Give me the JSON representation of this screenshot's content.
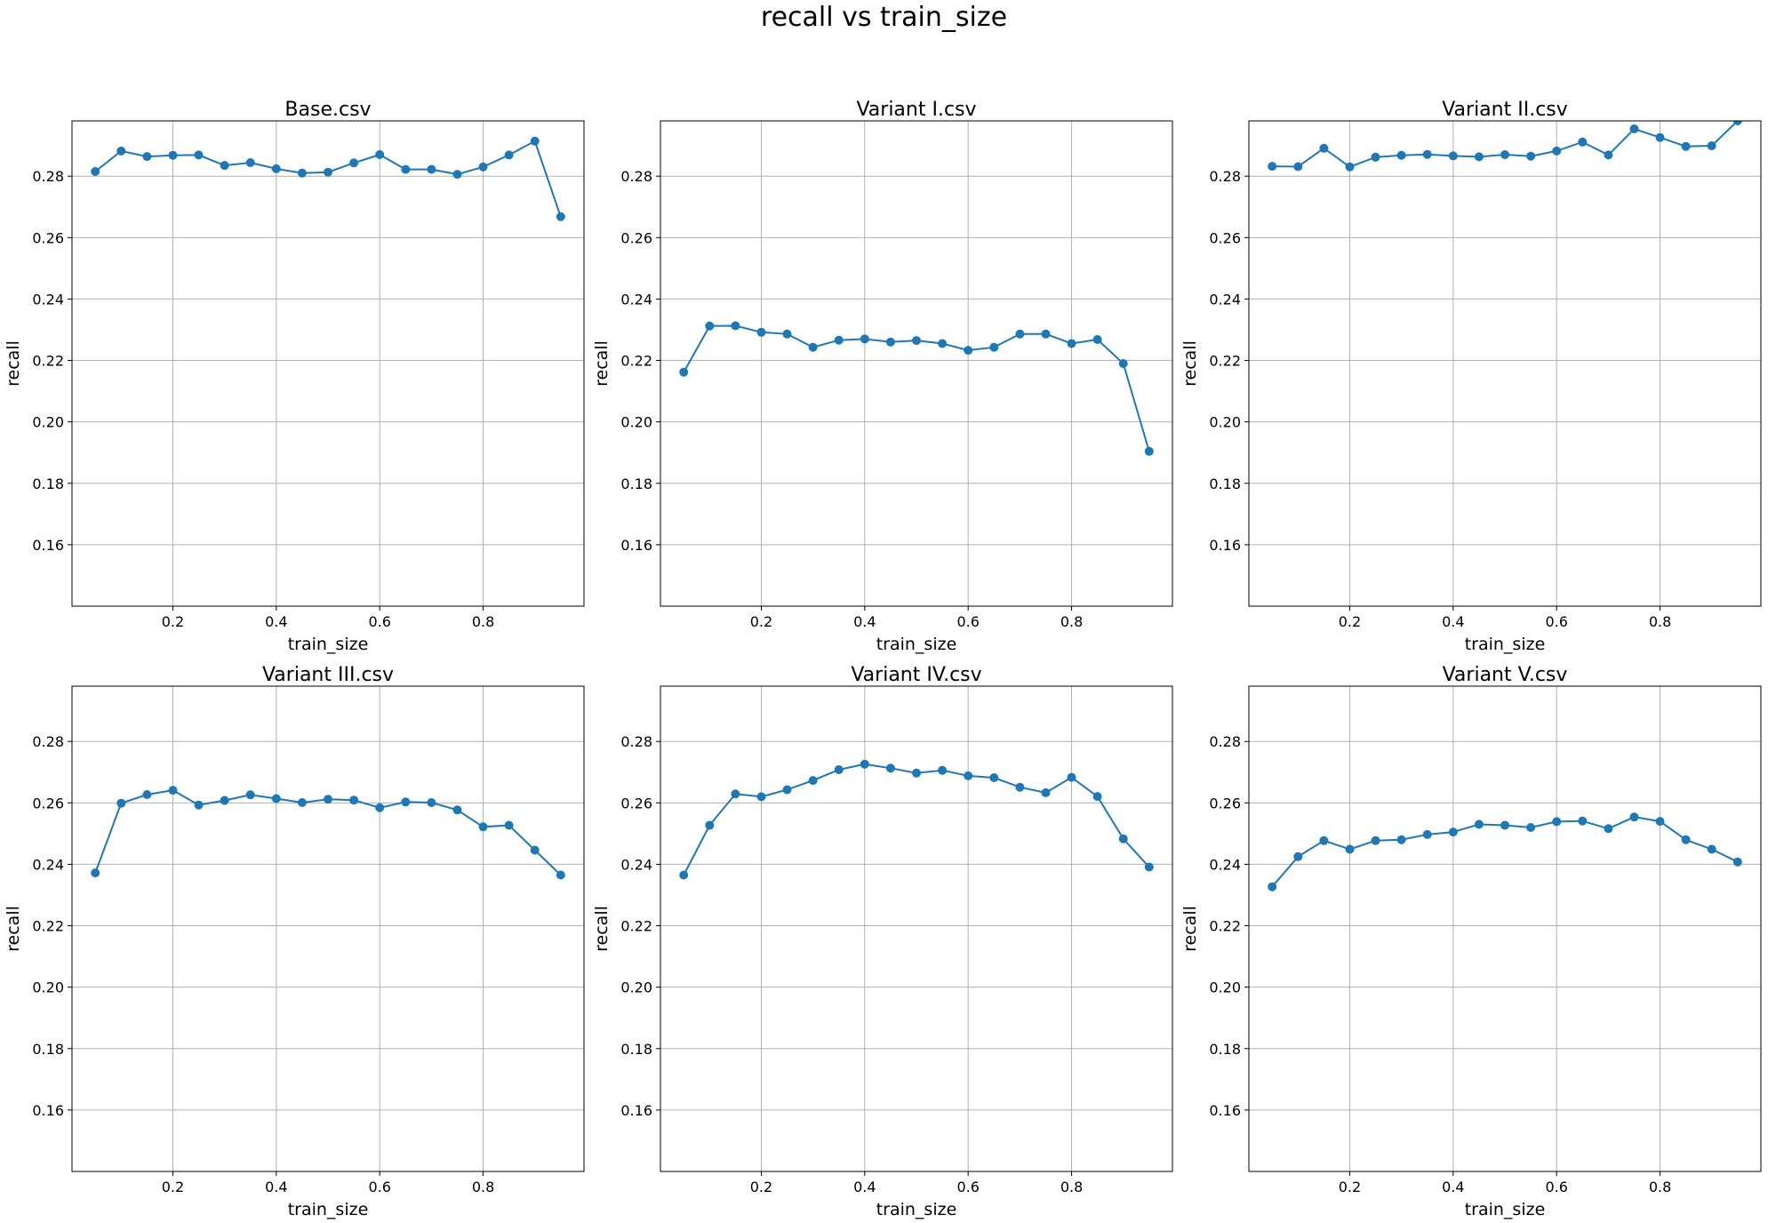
{
  "suptitle": "recall vs train_size",
  "colors": {
    "line": "#1f77b4",
    "grid": "#b0b0b0",
    "axes": "#000000"
  },
  "chart_data": [
    {
      "type": "line",
      "title": "Base.csv",
      "xlabel": "train_size",
      "ylabel": "recall",
      "xlim": [
        0.005,
        0.995
      ],
      "ylim": [
        0.14,
        0.298
      ],
      "xticks": [
        0.2,
        0.4,
        0.6,
        0.8
      ],
      "yticks": [
        0.16,
        0.18,
        0.2,
        0.22,
        0.24,
        0.26,
        0.28
      ],
      "grid": true,
      "x": [
        0.05,
        0.1,
        0.15,
        0.2,
        0.25,
        0.3,
        0.35,
        0.4,
        0.45,
        0.5,
        0.55,
        0.6,
        0.65,
        0.7,
        0.75,
        0.8,
        0.85,
        0.9,
        0.95
      ],
      "y": [
        0.2815,
        0.2882,
        0.2864,
        0.2868,
        0.2869,
        0.2835,
        0.2844,
        0.2824,
        0.281,
        0.2813,
        0.2843,
        0.287,
        0.2822,
        0.2822,
        0.2806,
        0.283,
        0.2869,
        0.2914,
        0.2668
      ]
    },
    {
      "type": "line",
      "title": "Variant I.csv",
      "xlabel": "train_size",
      "ylabel": "recall",
      "xlim": [
        0.005,
        0.995
      ],
      "ylim": [
        0.14,
        0.298
      ],
      "xticks": [
        0.2,
        0.4,
        0.6,
        0.8
      ],
      "yticks": [
        0.16,
        0.18,
        0.2,
        0.22,
        0.24,
        0.26,
        0.28
      ],
      "grid": true,
      "x": [
        0.05,
        0.1,
        0.15,
        0.2,
        0.25,
        0.3,
        0.35,
        0.4,
        0.45,
        0.5,
        0.55,
        0.6,
        0.65,
        0.7,
        0.75,
        0.8,
        0.85,
        0.9,
        0.95
      ],
      "y": [
        0.2162,
        0.2312,
        0.2313,
        0.2292,
        0.2286,
        0.2243,
        0.2266,
        0.227,
        0.226,
        0.2265,
        0.2255,
        0.2233,
        0.2243,
        0.2286,
        0.2286,
        0.2255,
        0.2268,
        0.219,
        0.1904
      ]
    },
    {
      "type": "line",
      "title": "Variant II.csv",
      "xlabel": "train_size",
      "ylabel": "recall",
      "xlim": [
        0.005,
        0.995
      ],
      "ylim": [
        0.14,
        0.298
      ],
      "xticks": [
        0.2,
        0.4,
        0.6,
        0.8
      ],
      "yticks": [
        0.16,
        0.18,
        0.2,
        0.22,
        0.24,
        0.26,
        0.28
      ],
      "grid": true,
      "x": [
        0.05,
        0.1,
        0.15,
        0.2,
        0.25,
        0.3,
        0.35,
        0.4,
        0.45,
        0.5,
        0.55,
        0.6,
        0.65,
        0.7,
        0.75,
        0.8,
        0.85,
        0.9,
        0.95
      ],
      "y": [
        0.2832,
        0.2831,
        0.2891,
        0.283,
        0.2862,
        0.2868,
        0.2871,
        0.2866,
        0.2863,
        0.287,
        0.2865,
        0.2882,
        0.2911,
        0.2869,
        0.2954,
        0.2926,
        0.2897,
        0.2899,
        0.298
      ]
    },
    {
      "type": "line",
      "title": "Variant III.csv",
      "xlabel": "train_size",
      "ylabel": "recall",
      "xlim": [
        0.005,
        0.995
      ],
      "ylim": [
        0.14,
        0.298
      ],
      "xticks": [
        0.2,
        0.4,
        0.6,
        0.8
      ],
      "yticks": [
        0.16,
        0.18,
        0.2,
        0.22,
        0.24,
        0.26,
        0.28
      ],
      "grid": true,
      "x": [
        0.05,
        0.1,
        0.15,
        0.2,
        0.25,
        0.3,
        0.35,
        0.4,
        0.45,
        0.5,
        0.55,
        0.6,
        0.65,
        0.7,
        0.75,
        0.8,
        0.85,
        0.9,
        0.95
      ],
      "y": [
        0.2372,
        0.2599,
        0.2627,
        0.2641,
        0.2593,
        0.2608,
        0.2626,
        0.2614,
        0.2601,
        0.2612,
        0.2609,
        0.2584,
        0.2603,
        0.2601,
        0.2577,
        0.2522,
        0.2527,
        0.2446,
        0.2365
      ]
    },
    {
      "type": "line",
      "title": "Variant IV.csv",
      "xlabel": "train_size",
      "ylabel": "recall",
      "xlim": [
        0.005,
        0.995
      ],
      "ylim": [
        0.14,
        0.298
      ],
      "xticks": [
        0.2,
        0.4,
        0.6,
        0.8
      ],
      "yticks": [
        0.16,
        0.18,
        0.2,
        0.22,
        0.24,
        0.26,
        0.28
      ],
      "grid": true,
      "x": [
        0.05,
        0.1,
        0.15,
        0.2,
        0.25,
        0.3,
        0.35,
        0.4,
        0.45,
        0.5,
        0.55,
        0.6,
        0.65,
        0.7,
        0.75,
        0.8,
        0.85,
        0.9,
        0.95
      ],
      "y": [
        0.2365,
        0.2527,
        0.2629,
        0.262,
        0.2643,
        0.2673,
        0.2708,
        0.2726,
        0.2713,
        0.2697,
        0.2706,
        0.2688,
        0.2682,
        0.2651,
        0.2633,
        0.2683,
        0.2621,
        0.2483,
        0.2391
      ]
    },
    {
      "type": "line",
      "title": "Variant V.csv",
      "xlabel": "train_size",
      "ylabel": "recall",
      "xlim": [
        0.005,
        0.995
      ],
      "ylim": [
        0.14,
        0.298
      ],
      "xticks": [
        0.2,
        0.4,
        0.6,
        0.8
      ],
      "yticks": [
        0.16,
        0.18,
        0.2,
        0.22,
        0.24,
        0.26,
        0.28
      ],
      "grid": true,
      "x": [
        0.05,
        0.1,
        0.15,
        0.2,
        0.25,
        0.3,
        0.35,
        0.4,
        0.45,
        0.5,
        0.55,
        0.6,
        0.65,
        0.7,
        0.75,
        0.8,
        0.85,
        0.9,
        0.95
      ],
      "y": [
        0.2327,
        0.2425,
        0.2477,
        0.2449,
        0.2477,
        0.248,
        0.2497,
        0.2505,
        0.253,
        0.2527,
        0.252,
        0.2539,
        0.2541,
        0.2516,
        0.2554,
        0.254,
        0.248,
        0.2449,
        0.2408
      ]
    }
  ]
}
